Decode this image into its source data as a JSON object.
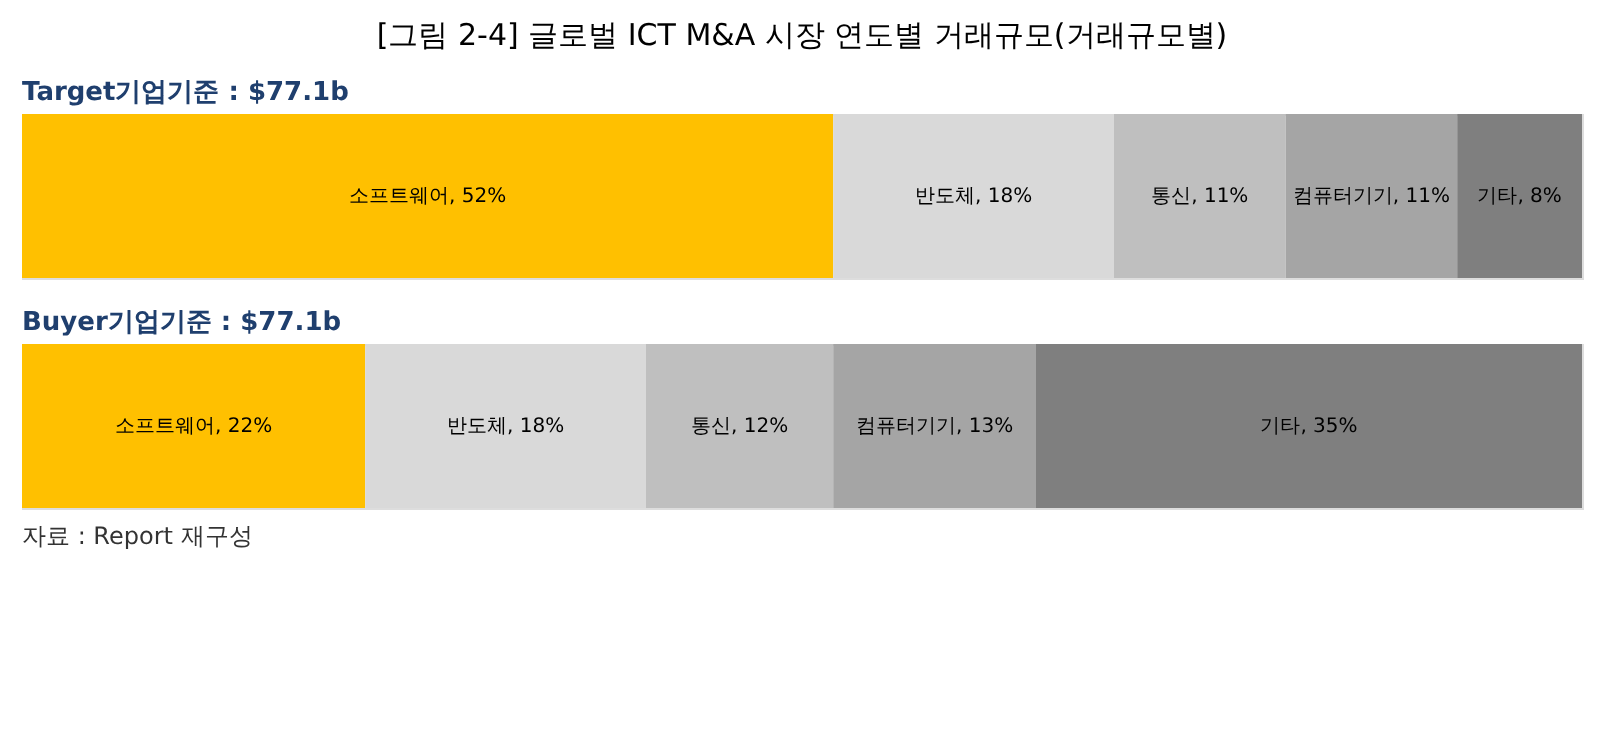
{
  "chart_data": [
    {
      "type": "bar",
      "orientation": "horizontal",
      "stacked": true,
      "title": "[그림 2-4] 글로벌 ICT M&A 시장 연도별 거래규모(거래규모별)",
      "subtitle": "Target기업기준 : $77.1b",
      "categories": [
        null
      ],
      "tick_labels": false,
      "legend": false,
      "series": [
        {
          "color": "#ffc000",
          "values": [
            52
          ],
          "value_labels": [
            "소프트웨어, 52%"
          ]
        },
        {
          "color": "#d9d9d9",
          "values": [
            18
          ],
          "value_labels": [
            "반도체, 18%"
          ]
        },
        {
          "color": "#bfbfbf",
          "values": [
            11
          ],
          "value_labels": [
            "통신, 11%"
          ]
        },
        {
          "color": "#a5a5a5",
          "values": [
            11
          ],
          "value_labels": [
            "컴퓨터기기, 11%"
          ]
        },
        {
          "color": "#7f7f7f",
          "values": [
            8
          ],
          "value_labels": [
            "기타, 8%"
          ]
        }
      ]
    },
    {
      "type": "bar",
      "orientation": "horizontal",
      "stacked": true,
      "subtitle": "Buyer기업기준 : $77.1b",
      "categories": [
        null
      ],
      "tick_labels": false,
      "legend": false,
      "annotations": [
        "자료 : Report 재구성"
      ],
      "series": [
        {
          "color": "#ffc000",
          "values": [
            22
          ],
          "value_labels": [
            "소프트웨어, 22%"
          ]
        },
        {
          "color": "#d9d9d9",
          "values": [
            18
          ],
          "value_labels": [
            "반도체, 18%"
          ]
        },
        {
          "color": "#bfbfbf",
          "values": [
            12
          ],
          "value_labels": [
            "통신, 12%"
          ]
        },
        {
          "color": "#a5a5a5",
          "values": [
            13
          ],
          "value_labels": [
            "컴퓨터기기, 13%"
          ]
        },
        {
          "color": "#7f7f7f",
          "values": [
            35
          ],
          "value_labels": [
            "기타, 35%"
          ]
        }
      ]
    }
  ]
}
